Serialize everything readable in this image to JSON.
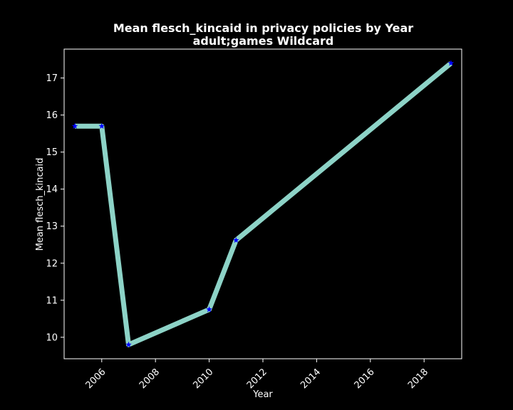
{
  "chart_data": {
    "type": "line",
    "title": "Mean flesch_kincaid in privacy policies by Year",
    "subtitle": "adult;games Wildcard",
    "xlabel": "Year",
    "ylabel": "Mean flesch_kincaid",
    "xlim": [
      2004.6,
      2019.4
    ],
    "ylim": [
      9.42,
      17.78
    ],
    "xticks": [
      2006,
      2008,
      2010,
      2012,
      2014,
      2016,
      2018
    ],
    "yticks": [
      10,
      11,
      12,
      13,
      14,
      15,
      16,
      17
    ],
    "grid": false,
    "series": [
      {
        "x": [
          2005,
          2006,
          2007,
          2010,
          2011,
          2019
        ],
        "y": [
          15.7,
          15.7,
          9.8,
          10.75,
          12.62,
          17.4
        ],
        "line_color": "#8dd3c7",
        "marker": "star",
        "marker_color": "#0000ff"
      }
    ],
    "background": "#000000",
    "foreground": "#ffffff"
  }
}
